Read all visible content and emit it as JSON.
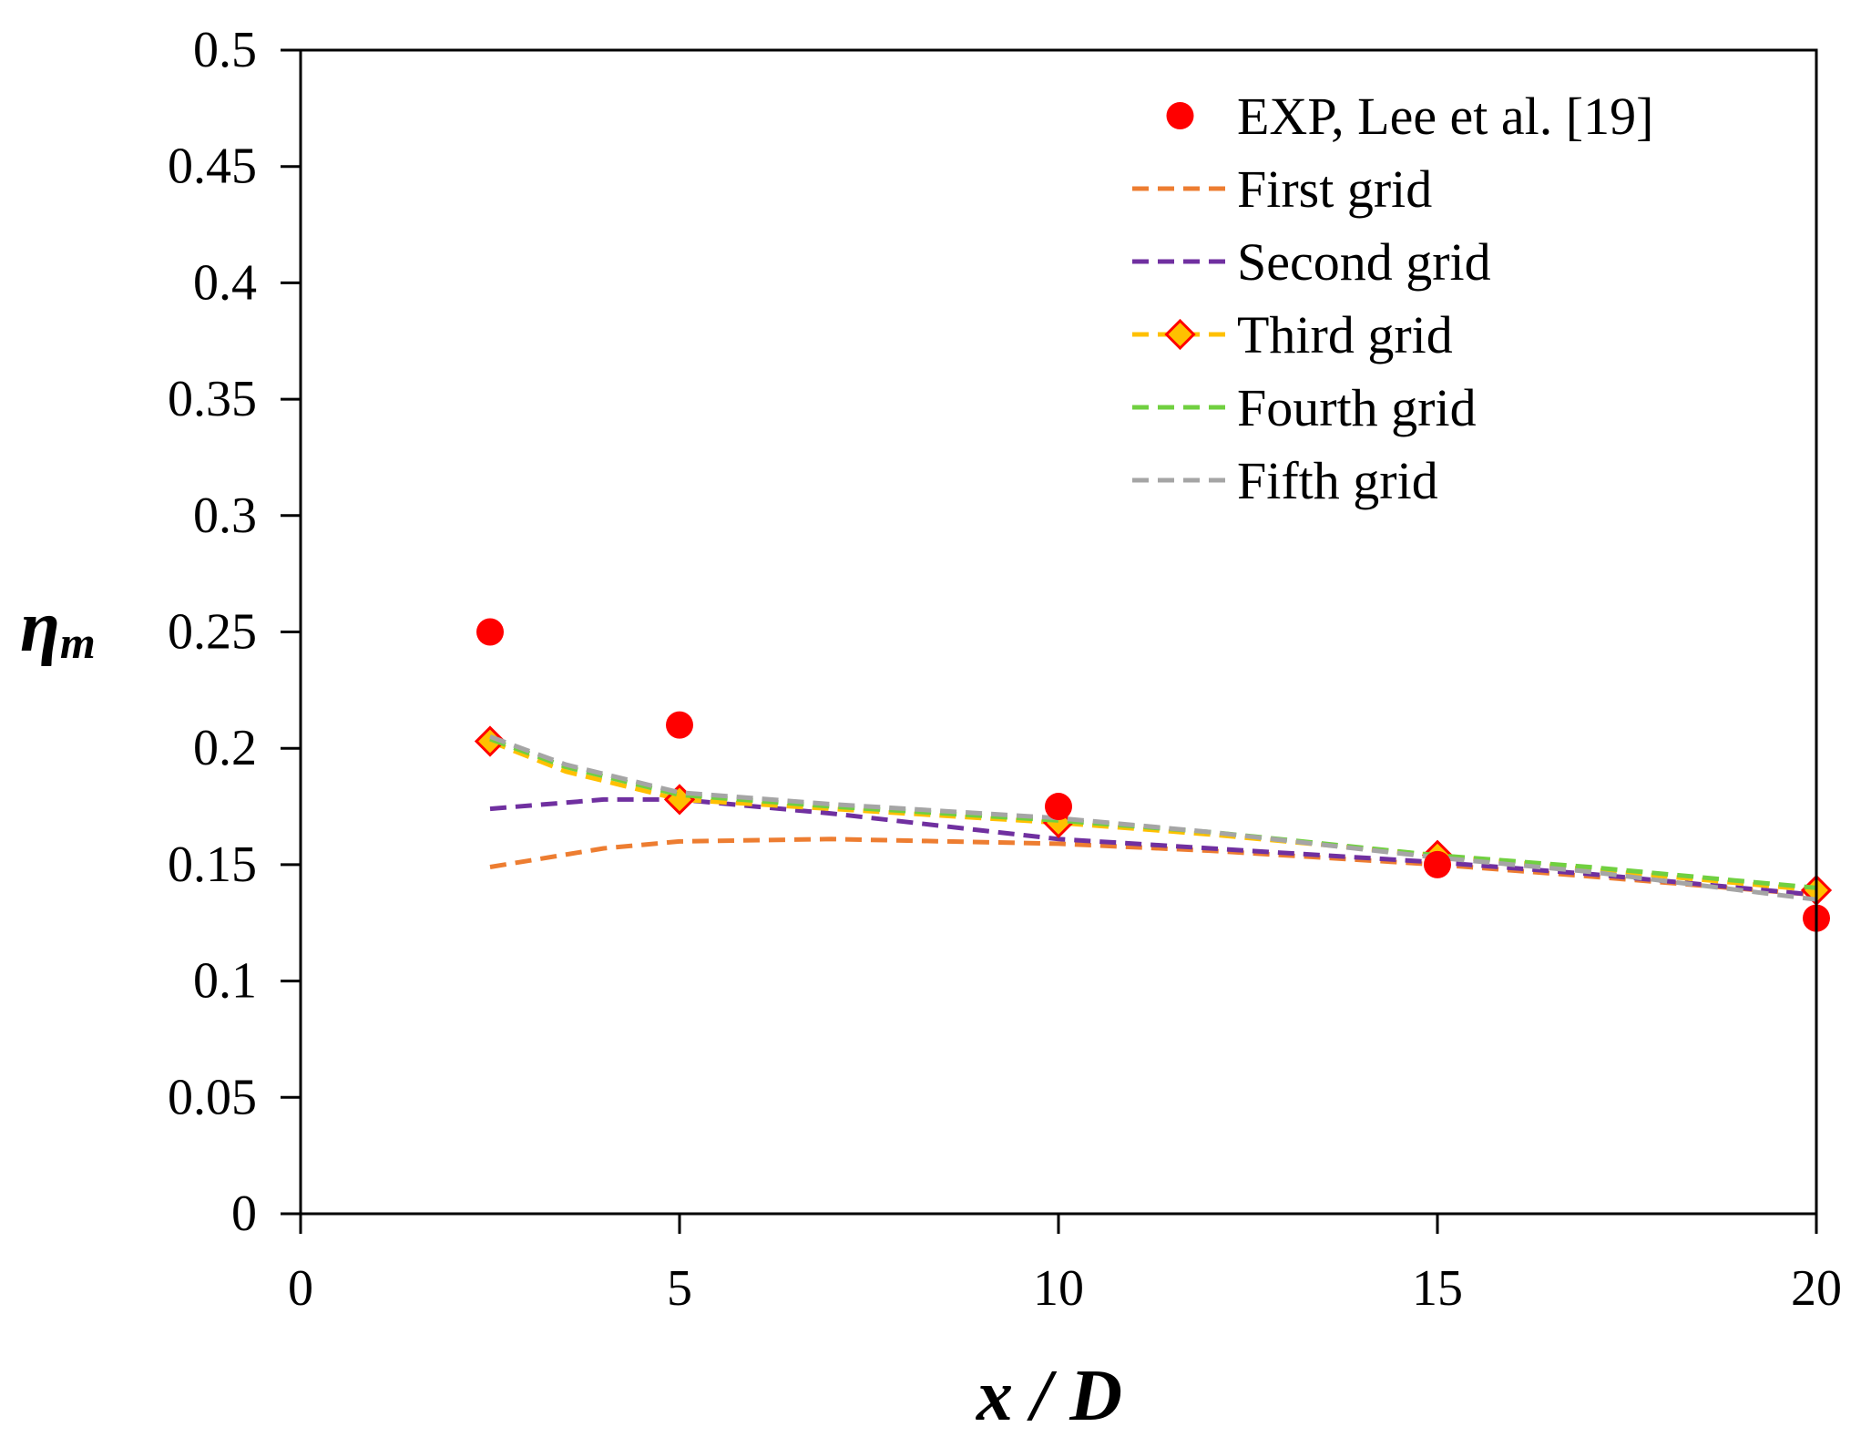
{
  "chart_data": {
    "type": "line",
    "title": "",
    "xlabel": "x / D",
    "ylabel": {
      "main": "η",
      "sub": "m"
    },
    "xlim": [
      0,
      20
    ],
    "ylim": [
      0,
      0.5
    ],
    "xticks": [
      0,
      5,
      10,
      15,
      20
    ],
    "xtick_labels": [
      "0",
      "5",
      "10",
      "15",
      "20"
    ],
    "yticks": [
      0,
      0.05,
      0.1,
      0.15,
      0.2,
      0.25,
      0.3,
      0.35,
      0.4,
      0.45,
      0.5
    ],
    "ytick_labels": [
      "0",
      "0.05",
      "0.1",
      "0.15",
      "0.2",
      "0.25",
      "0.3",
      "0.35",
      "0.4",
      "0.45",
      "0.5"
    ],
    "grid": false,
    "legend_position": "top-right",
    "series": [
      {
        "name": "EXP, Lee et al. [19]",
        "style": "scatter",
        "color": "#ff0000",
        "x": [
          2.5,
          5,
          10,
          15,
          20
        ],
        "y": [
          0.25,
          0.21,
          0.175,
          0.15,
          0.127
        ]
      },
      {
        "name": "First grid",
        "style": "dashed",
        "color": "#ed7d31",
        "x": [
          2.5,
          4,
          5,
          7,
          10,
          12,
          15,
          17,
          20
        ],
        "y": [
          0.149,
          0.157,
          0.16,
          0.161,
          0.159,
          0.156,
          0.15,
          0.145,
          0.137
        ]
      },
      {
        "name": "Second grid",
        "style": "dashed",
        "color": "#7030a0",
        "x": [
          2.5,
          4,
          5,
          7,
          10,
          12,
          15,
          17,
          20
        ],
        "y": [
          0.174,
          0.178,
          0.178,
          0.172,
          0.161,
          0.157,
          0.151,
          0.146,
          0.137
        ]
      },
      {
        "name": "Third grid",
        "style": "dashed-diamond",
        "color": "#ffc000",
        "marker_edge": "#ff0000",
        "x": [
          2.5,
          3.5,
          5,
          7,
          10,
          12,
          15,
          17,
          20
        ],
        "y": [
          0.203,
          0.19,
          0.178,
          0.174,
          0.168,
          0.163,
          0.154,
          0.148,
          0.139
        ],
        "marker_x": [
          2.5,
          5,
          10,
          15,
          20
        ],
        "marker_y": [
          0.203,
          0.178,
          0.168,
          0.154,
          0.139
        ]
      },
      {
        "name": "Fourth grid",
        "style": "dashed",
        "color": "#70d040",
        "x": [
          2.5,
          3.5,
          5,
          7,
          10,
          12,
          15,
          17,
          20
        ],
        "y": [
          0.204,
          0.192,
          0.18,
          0.175,
          0.169,
          0.164,
          0.154,
          0.149,
          0.14
        ]
      },
      {
        "name": "Fifth grid",
        "style": "dashed",
        "color": "#a5a5a5",
        "x": [
          2.5,
          3.5,
          5,
          7,
          10,
          12,
          15,
          17,
          20
        ],
        "y": [
          0.205,
          0.193,
          0.181,
          0.176,
          0.17,
          0.164,
          0.153,
          0.147,
          0.135
        ]
      }
    ]
  }
}
